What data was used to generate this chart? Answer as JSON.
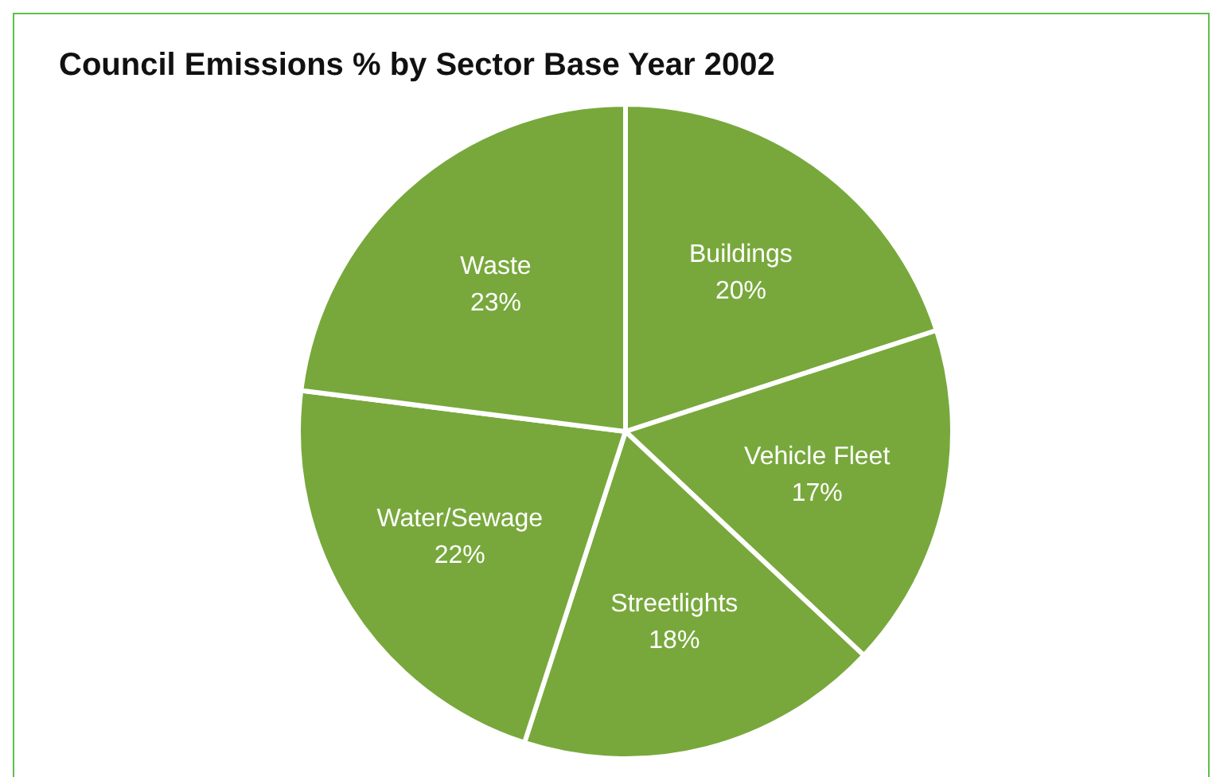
{
  "chart_data": {
    "type": "pie",
    "title": "Council Emissions % by Sector Base Year 2002",
    "categories": [
      "Buildings",
      "Vehicle Fleet",
      "Streetlights",
      "Water/Sewage",
      "Waste"
    ],
    "values": [
      20,
      17,
      18,
      22,
      23
    ],
    "value_labels": [
      "20%",
      "17%",
      "18%",
      "22%",
      "23%"
    ],
    "colors": [
      "#78a83c",
      "#78a83c",
      "#78a83c",
      "#78a83c",
      "#78a83c"
    ],
    "legend": false
  }
}
